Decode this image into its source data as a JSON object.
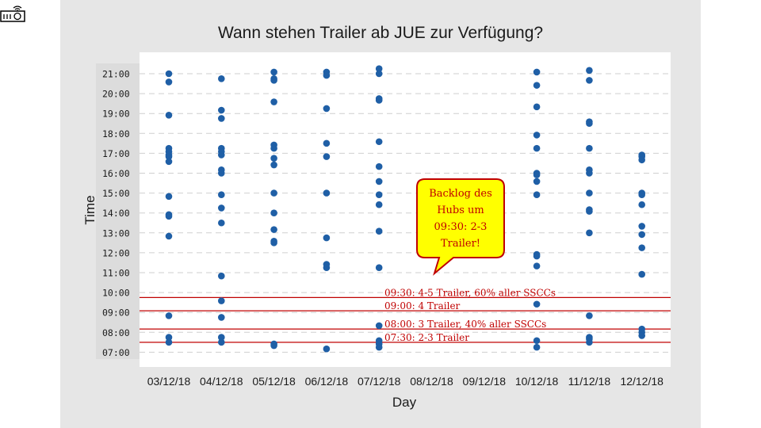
{
  "chart_data": {
    "type": "scatter",
    "title": "Wann stehen Trailer ab JUE zur Verfügung?",
    "xlabel": "Day",
    "ylabel": "Time",
    "categories": [
      "03/12/18",
      "04/12/18",
      "05/12/18",
      "06/12/18",
      "07/12/18",
      "08/12/18",
      "09/12/18",
      "10/12/18",
      "11/12/18",
      "12/12/18"
    ],
    "yticks": [
      "21:00",
      "20:00",
      "19:00",
      "18:00",
      "17:00",
      "16:00",
      "15:00",
      "14:00",
      "13:00",
      "12:00",
      "11:00",
      "10:00",
      "09:00",
      "08:00",
      "07:00"
    ],
    "ylim": [
      "06:40",
      "21:40"
    ],
    "grid": true,
    "point_color": "#1f5fa6",
    "series": [
      {
        "points": [
          [
            "03/12/18",
            "21:00"
          ],
          [
            "03/12/18",
            "20:35"
          ],
          [
            "03/12/18",
            "18:55"
          ],
          [
            "03/12/18",
            "17:15"
          ],
          [
            "03/12/18",
            "17:05"
          ],
          [
            "03/12/18",
            "16:55"
          ],
          [
            "03/12/18",
            "16:50"
          ],
          [
            "03/12/18",
            "16:35"
          ],
          [
            "03/12/18",
            "14:50"
          ],
          [
            "03/12/18",
            "13:55"
          ],
          [
            "03/12/18",
            "13:50"
          ],
          [
            "03/12/18",
            "12:50"
          ],
          [
            "03/12/18",
            "08:50"
          ],
          [
            "03/12/18",
            "07:45"
          ],
          [
            "03/12/18",
            "07:30"
          ],
          [
            "04/12/18",
            "20:45"
          ],
          [
            "04/12/18",
            "19:10"
          ],
          [
            "04/12/18",
            "18:45"
          ],
          [
            "04/12/18",
            "17:15"
          ],
          [
            "04/12/18",
            "17:05"
          ],
          [
            "04/12/18",
            "16:55"
          ],
          [
            "04/12/18",
            "16:10"
          ],
          [
            "04/12/18",
            "16:00"
          ],
          [
            "04/12/18",
            "14:55"
          ],
          [
            "04/12/18",
            "14:15"
          ],
          [
            "04/12/18",
            "13:30"
          ],
          [
            "04/12/18",
            "10:50"
          ],
          [
            "04/12/18",
            "09:35"
          ],
          [
            "04/12/18",
            "08:45"
          ],
          [
            "04/12/18",
            "07:45"
          ],
          [
            "04/12/18",
            "07:30"
          ],
          [
            "05/12/18",
            "21:05"
          ],
          [
            "05/12/18",
            "20:45"
          ],
          [
            "05/12/18",
            "20:40"
          ],
          [
            "05/12/18",
            "19:35"
          ],
          [
            "05/12/18",
            "17:25"
          ],
          [
            "05/12/18",
            "17:15"
          ],
          [
            "05/12/18",
            "16:45"
          ],
          [
            "05/12/18",
            "16:25"
          ],
          [
            "05/12/18",
            "15:00"
          ],
          [
            "05/12/18",
            "14:00"
          ],
          [
            "05/12/18",
            "13:10"
          ],
          [
            "05/12/18",
            "12:35"
          ],
          [
            "05/12/18",
            "12:30"
          ],
          [
            "05/12/18",
            "07:25"
          ],
          [
            "05/12/18",
            "07:20"
          ],
          [
            "06/12/18",
            "21:05"
          ],
          [
            "06/12/18",
            "20:55"
          ],
          [
            "06/12/18",
            "19:15"
          ],
          [
            "06/12/18",
            "17:30"
          ],
          [
            "06/12/18",
            "16:50"
          ],
          [
            "06/12/18",
            "15:00"
          ],
          [
            "06/12/18",
            "12:45"
          ],
          [
            "06/12/18",
            "11:25"
          ],
          [
            "06/12/18",
            "11:15"
          ],
          [
            "06/12/18",
            "07:10"
          ],
          [
            "07/12/18",
            "21:15"
          ],
          [
            "07/12/18",
            "21:00"
          ],
          [
            "07/12/18",
            "19:45"
          ],
          [
            "07/12/18",
            "19:40"
          ],
          [
            "07/12/18",
            "17:35"
          ],
          [
            "07/12/18",
            "16:20"
          ],
          [
            "07/12/18",
            "15:35"
          ],
          [
            "07/12/18",
            "14:55"
          ],
          [
            "07/12/18",
            "14:25"
          ],
          [
            "07/12/18",
            "13:05"
          ],
          [
            "07/12/18",
            "11:15"
          ],
          [
            "07/12/18",
            "08:20"
          ],
          [
            "07/12/18",
            "07:35"
          ],
          [
            "07/12/18",
            "07:25"
          ],
          [
            "07/12/18",
            "07:15"
          ],
          [
            "10/12/18",
            "21:05"
          ],
          [
            "10/12/18",
            "20:25"
          ],
          [
            "10/12/18",
            "19:20"
          ],
          [
            "10/12/18",
            "17:55"
          ],
          [
            "10/12/18",
            "17:15"
          ],
          [
            "10/12/18",
            "16:00"
          ],
          [
            "10/12/18",
            "15:55"
          ],
          [
            "10/12/18",
            "15:35"
          ],
          [
            "10/12/18",
            "14:55"
          ],
          [
            "10/12/18",
            "11:55"
          ],
          [
            "10/12/18",
            "11:50"
          ],
          [
            "10/12/18",
            "11:20"
          ],
          [
            "10/12/18",
            "09:25"
          ],
          [
            "10/12/18",
            "07:35"
          ],
          [
            "10/12/18",
            "07:15"
          ],
          [
            "11/12/18",
            "21:10"
          ],
          [
            "11/12/18",
            "20:40"
          ],
          [
            "11/12/18",
            "18:35"
          ],
          [
            "11/12/18",
            "18:30"
          ],
          [
            "11/12/18",
            "17:15"
          ],
          [
            "11/12/18",
            "16:10"
          ],
          [
            "11/12/18",
            "16:00"
          ],
          [
            "11/12/18",
            "15:00"
          ],
          [
            "11/12/18",
            "14:10"
          ],
          [
            "11/12/18",
            "14:05"
          ],
          [
            "11/12/18",
            "13:00"
          ],
          [
            "11/12/18",
            "08:50"
          ],
          [
            "11/12/18",
            "07:45"
          ],
          [
            "11/12/18",
            "07:40"
          ],
          [
            "11/12/18",
            "07:30"
          ],
          [
            "12/12/18",
            "16:55"
          ],
          [
            "12/12/18",
            "16:50"
          ],
          [
            "12/12/18",
            "16:40"
          ],
          [
            "12/12/18",
            "15:00"
          ],
          [
            "12/12/18",
            "14:55"
          ],
          [
            "12/12/18",
            "14:25"
          ],
          [
            "12/12/18",
            "13:20"
          ],
          [
            "12/12/18",
            "12:55"
          ],
          [
            "12/12/18",
            "12:15"
          ],
          [
            "12/12/18",
            "10:55"
          ],
          [
            "12/12/18",
            "08:10"
          ],
          [
            "12/12/18",
            "08:00"
          ],
          [
            "12/12/18",
            "07:50"
          ]
        ]
      }
    ],
    "reference_lines": [
      {
        "time": "09:45",
        "label": "09:30: 4-5 Trailer, 60% aller SSCCs"
      },
      {
        "time": "09:05",
        "label": "09:00: 4 Trailer"
      },
      {
        "time": "08:10",
        "label": "08:00: 3 Trailer, 40% aller SSCCs"
      },
      {
        "time": "07:30",
        "label": "07:30: 2-3 Trailer"
      }
    ],
    "reference_color": "#c00000",
    "callout": {
      "lines": [
        "Backlog des",
        "Hubs um",
        "09:30: 2-3",
        "Trailer!"
      ],
      "fill": "#ffff00",
      "border": "#c00000",
      "text_color": "#c00000"
    }
  },
  "slide_icon": "projector-icon"
}
